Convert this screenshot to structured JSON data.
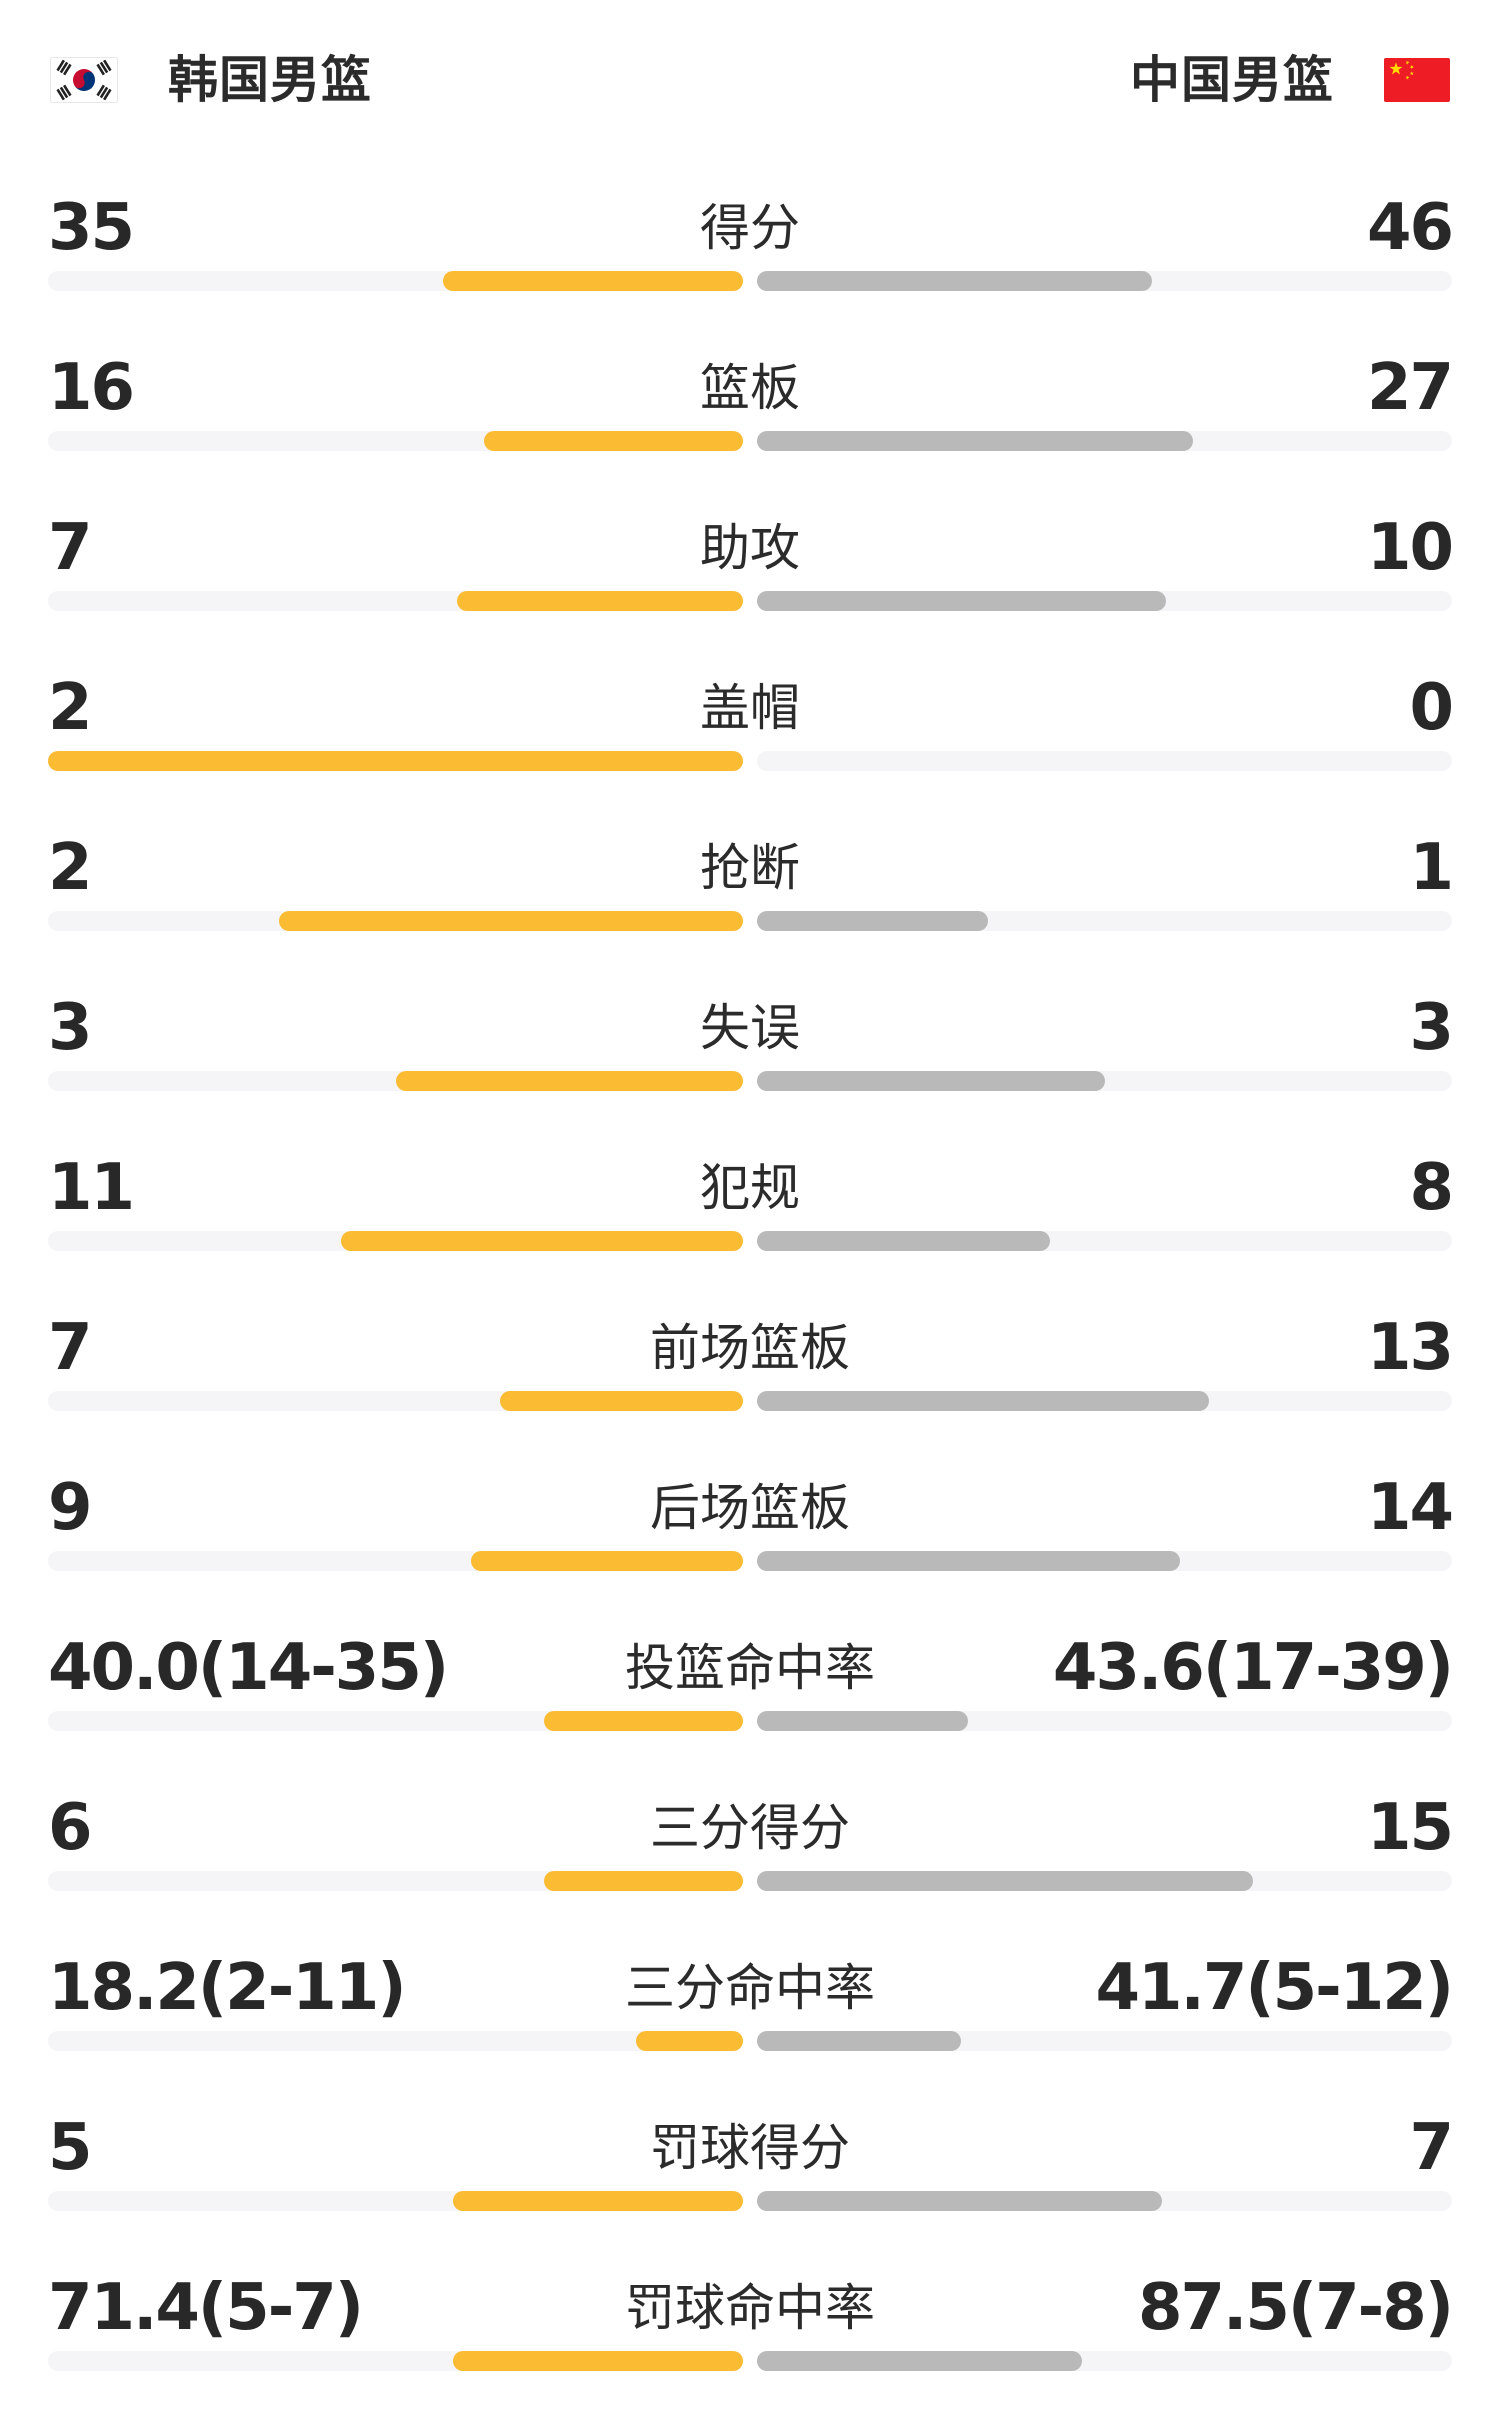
{
  "header": {
    "left_team": {
      "name": "韩国男篮",
      "flag": "south-korea-flag"
    },
    "right_team": {
      "name": "中国男篮",
      "flag": "china-flag"
    }
  },
  "colors": {
    "left_bar": "#FBBC33",
    "right_bar": "#B9B9B9",
    "bar_track": "#F5F5F7",
    "text": "#2B2B2B"
  },
  "rows": [
    {
      "label": "得分",
      "left": "35",
      "right": "46",
      "left_fill": 43.2,
      "right_fill": 56.8
    },
    {
      "label": "篮板",
      "left": "16",
      "right": "27",
      "left_fill": 37.2,
      "right_fill": 62.8
    },
    {
      "label": "助攻",
      "left": "7",
      "right": "10",
      "left_fill": 41.2,
      "right_fill": 58.8
    },
    {
      "label": "盖帽",
      "left": "2",
      "right": "0",
      "left_fill": 100,
      "right_fill": 0
    },
    {
      "label": "抢断",
      "left": "2",
      "right": "1",
      "left_fill": 66.7,
      "right_fill": 33.3
    },
    {
      "label": "失误",
      "left": "3",
      "right": "3",
      "left_fill": 50,
      "right_fill": 50
    },
    {
      "label": "犯规",
      "left": "11",
      "right": "8",
      "left_fill": 57.9,
      "right_fill": 42.1
    },
    {
      "label": "前场篮板",
      "left": "7",
      "right": "13",
      "left_fill": 35,
      "right_fill": 65
    },
    {
      "label": "后场篮板",
      "left": "9",
      "right": "14",
      "left_fill": 39.1,
      "right_fill": 60.9
    },
    {
      "label": "投篮命中率",
      "left": "40.0(14-35)",
      "right": "43.6(17-39)",
      "left_fill": 28.6,
      "right_fill": 30.4
    },
    {
      "label": "三分得分",
      "left": "6",
      "right": "15",
      "left_fill": 28.6,
      "right_fill": 71.4
    },
    {
      "label": "三分命中率",
      "left": "18.2(2-11)",
      "right": "41.7(5-12)",
      "left_fill": 15.4,
      "right_fill": 29.4
    },
    {
      "label": "罚球得分",
      "left": "5",
      "right": "7",
      "left_fill": 41.7,
      "right_fill": 58.3
    },
    {
      "label": "罚球命中率",
      "left": "71.4(5-7)",
      "right": "87.5(7-8)",
      "left_fill": 41.7,
      "right_fill": 46.7
    }
  ],
  "chart_data": {
    "type": "bar",
    "title": "韩国男篮 vs 中国男篮",
    "categories": [
      "得分",
      "篮板",
      "助攻",
      "盖帽",
      "抢断",
      "失误",
      "犯规",
      "前场篮板",
      "后场篮板",
      "投篮命中率",
      "三分得分",
      "三分命中率",
      "罚球得分",
      "罚球命中率"
    ],
    "series": [
      {
        "name": "韩国男篮",
        "color": "#FBBC33",
        "values": [
          "35",
          "16",
          "7",
          "2",
          "2",
          "3",
          "11",
          "7",
          "9",
          "40.0(14-35)",
          "6",
          "18.2(2-11)",
          "5",
          "71.4(5-7)"
        ]
      },
      {
        "name": "中国男篮",
        "color": "#B9B9B9",
        "values": [
          "46",
          "27",
          "10",
          "0",
          "1",
          "3",
          "8",
          "13",
          "14",
          "43.6(17-39)",
          "15",
          "41.7(5-12)",
          "7",
          "87.5(7-8)"
        ]
      }
    ],
    "legend_position": "top",
    "layout": "horizontal paired bars growing outward from center"
  }
}
